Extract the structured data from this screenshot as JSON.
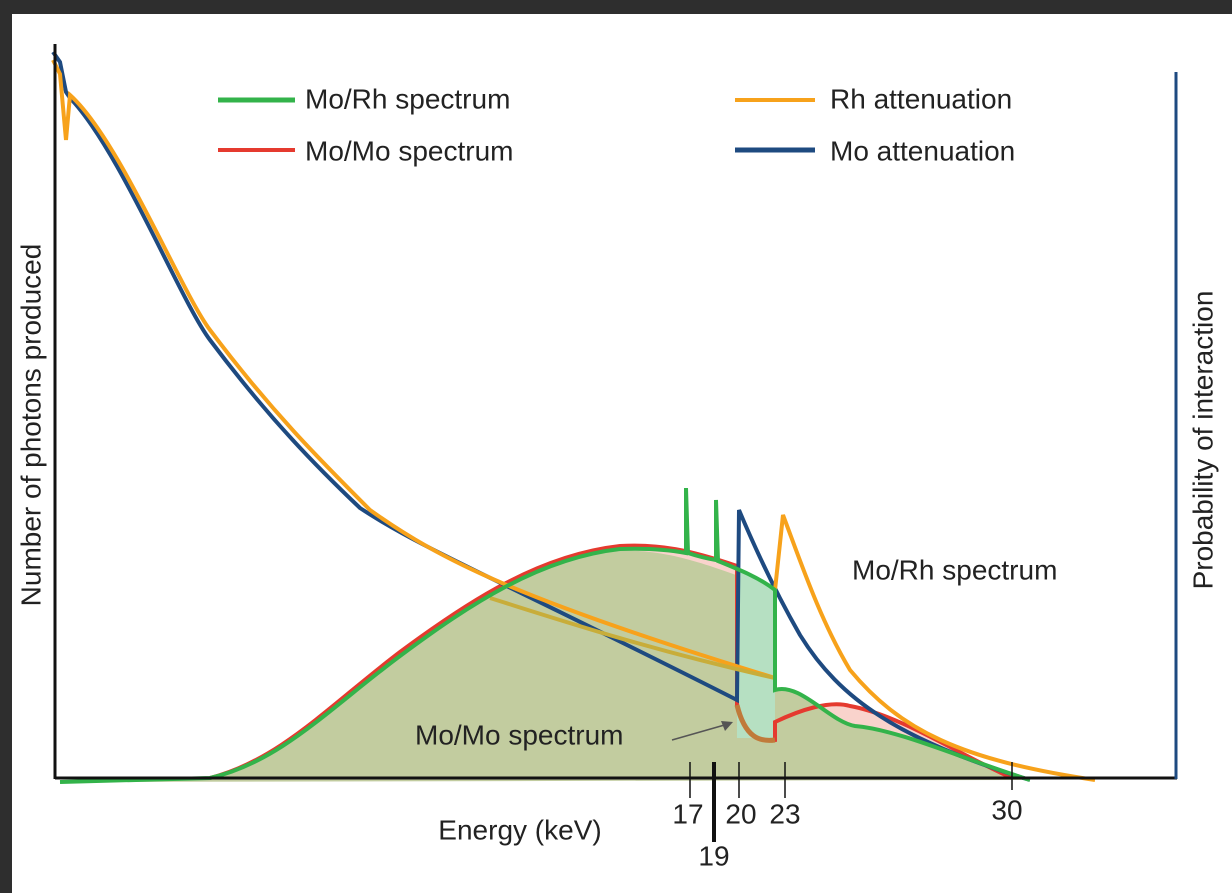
{
  "legend": [
    "Mo/Rh spectrum",
    "Mo/Mo spectrum",
    "Rh attenuation",
    "Mo attenuation"
  ],
  "axes": {
    "x_label": "Energy (keV)",
    "y_label": "Number of photons produced",
    "y2_label": "Probability of interaction"
  },
  "ticks": [
    "17",
    "19",
    "20",
    "23",
    "30"
  ],
  "annotations": [
    "Mo/Rh spectrum",
    "Mo/Mo spectrum"
  ]
}
